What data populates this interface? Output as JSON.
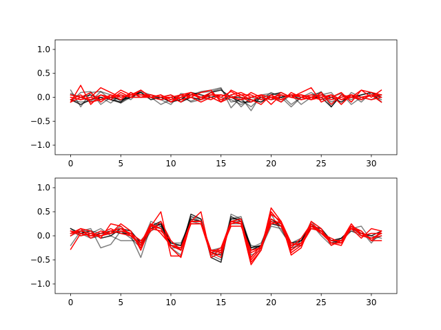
{
  "chart_data": [
    {
      "type": "line",
      "title": "",
      "xlabel": "",
      "ylabel": "",
      "xlim": [
        -1.55,
        32.55
      ],
      "ylim": [
        -1.2,
        1.2
      ],
      "xticks": [
        0,
        5,
        10,
        15,
        20,
        25,
        30
      ],
      "yticks": [
        -1.0,
        -0.5,
        0.0,
        0.5,
        1.0
      ],
      "ytick_labels": [
        "−1.0",
        "−0.5",
        "0.0",
        "0.5",
        "1.0"
      ],
      "grid": false,
      "legend": "none",
      "x": [
        0,
        1,
        2,
        3,
        4,
        5,
        6,
        7,
        8,
        9,
        10,
        11,
        12,
        13,
        14,
        15,
        16,
        17,
        18,
        19,
        20,
        21,
        22,
        23,
        24,
        25,
        26,
        27,
        28,
        29,
        30,
        31
      ],
      "series": [
        {
          "color": "#000000",
          "alpha": 0.5,
          "values": [
            0.15,
            -0.2,
            0.1,
            0.12,
            -0.05,
            -0.12,
            0.05,
            0.1,
            0.0,
            -0.05,
            -0.15,
            0.08,
            0.05,
            0.12,
            0.15,
            0.2,
            -0.22,
            0.0,
            -0.28,
            0.05,
            0.08,
            0.05,
            -0.15,
            0.0,
            0.05,
            0.1,
            -0.1,
            0.0,
            0.05,
            -0.1,
            0.1,
            0.05
          ]
        },
        {
          "color": "#000000",
          "alpha": 0.5,
          "values": [
            -0.05,
            -0.1,
            -0.08,
            0.12,
            0.05,
            -0.08,
            0.0,
            0.12,
            0.05,
            -0.05,
            0.0,
            -0.1,
            0.05,
            0.1,
            0.12,
            0.18,
            -0.1,
            -0.05,
            -0.2,
            0.0,
            0.05,
            -0.1,
            0.05,
            0.0,
            -0.05,
            0.05,
            0.1,
            -0.15,
            0.1,
            0.0,
            -0.05,
            0.05
          ]
        },
        {
          "color": "#000000",
          "alpha": 0.5,
          "values": [
            0.08,
            0.0,
            -0.1,
            0.0,
            -0.12,
            0.05,
            -0.05,
            0.15,
            0.0,
            0.0,
            -0.1,
            0.0,
            -0.08,
            0.0,
            0.05,
            0.0,
            -0.05,
            -0.15,
            -0.05,
            -0.1,
            0.0,
            0.0,
            -0.2,
            0.0,
            0.1,
            -0.05,
            0.0,
            0.08,
            -0.15,
            0.0,
            0.05,
            -0.05
          ]
        },
        {
          "color": "#000000",
          "alpha": 0.5,
          "values": [
            -0.1,
            0.1,
            0.12,
            -0.15,
            0.0,
            -0.12,
            0.0,
            0.0,
            0.0,
            -0.15,
            -0.05,
            0.05,
            -0.1,
            -0.05,
            0.0,
            -0.1,
            0.05,
            -0.2,
            0.0,
            -0.05,
            0.1,
            0.0,
            0.05,
            -0.15,
            0.0,
            0.12,
            -0.2,
            0.05,
            -0.05,
            0.05,
            0.1,
            -0.1
          ]
        },
        {
          "color": "#000000",
          "alpha": 0.85,
          "values": [
            -0.05,
            -0.15,
            -0.05,
            0.0,
            -0.05,
            -0.1,
            0.1,
            0.0,
            0.05,
            0.0,
            -0.1,
            -0.05,
            0.1,
            0.05,
            0.0,
            0.05,
            0.0,
            0.0,
            -0.05,
            -0.1,
            0.05,
            0.1,
            0.0,
            0.05,
            0.0,
            0.0,
            -0.2,
            0.05,
            0.0,
            0.05,
            0.1,
            0.0
          ]
        },
        {
          "color": "#000000",
          "alpha": 0.85,
          "values": [
            0.05,
            0.0,
            0.05,
            -0.05,
            0.0,
            -0.05,
            0.0,
            0.1,
            -0.05,
            0.0,
            0.05,
            -0.1,
            0.0,
            -0.05,
            0.1,
            0.15,
            0.0,
            -0.1,
            -0.1,
            0.0,
            -0.05,
            0.0,
            0.05,
            -0.05,
            0.0,
            0.05,
            0.0,
            -0.1,
            0.05,
            -0.05,
            0.05,
            -0.1
          ]
        },
        {
          "color": "#ff0000",
          "alpha": 1.0,
          "values": [
            -0.1,
            0.25,
            -0.15,
            0.05,
            -0.05,
            0.1,
            0.0,
            0.15,
            0.0,
            0.05,
            -0.05,
            0.0,
            0.05,
            0.0,
            0.1,
            -0.05,
            0.05,
            0.1,
            0.0,
            0.05,
            -0.15,
            0.05,
            0.0,
            0.1,
            0.2,
            -0.1,
            0.0,
            0.1,
            -0.1,
            0.15,
            0.1,
            0.05
          ]
        },
        {
          "color": "#ff0000",
          "alpha": 1.0,
          "values": [
            0.0,
            -0.05,
            0.0,
            0.2,
            0.1,
            0.0,
            0.05,
            0.15,
            0.0,
            0.05,
            -0.1,
            0.0,
            0.1,
            -0.05,
            0.05,
            0.0,
            0.12,
            0.0,
            -0.1,
            0.05,
            0.0,
            -0.1,
            0.1,
            0.0,
            -0.05,
            0.0,
            0.05,
            -0.05,
            0.0,
            0.15,
            0.0,
            0.15
          ]
        },
        {
          "color": "#ff0000",
          "alpha": 1.0,
          "values": [
            -0.05,
            0.05,
            -0.1,
            -0.05,
            0.0,
            0.15,
            0.05,
            0.05,
            0.05,
            0.0,
            0.05,
            -0.05,
            0.0,
            0.1,
            0.15,
            -0.1,
            0.15,
            0.05,
            -0.05,
            -0.15,
            0.05,
            -0.05,
            0.05,
            0.0,
            0.05,
            0.0,
            0.05,
            -0.15,
            0.05,
            -0.05,
            0.05,
            -0.1
          ]
        },
        {
          "color": "#ff0000",
          "alpha": 1.0,
          "values": [
            -0.1,
            0.0,
            0.1,
            -0.1,
            0.05,
            -0.05,
            0.1,
            0.0,
            0.0,
            0.05,
            -0.1,
            0.05,
            0.0,
            -0.1,
            0.0,
            -0.1,
            0.0,
            -0.05,
            0.1,
            0.0,
            -0.05,
            0.1,
            0.0,
            0.05,
            -0.05,
            0.1,
            -0.15,
            0.05,
            0.0,
            -0.05,
            0.05,
            0.05
          ]
        },
        {
          "color": "#ff0000",
          "alpha": 1.0,
          "values": [
            0.0,
            -0.05,
            0.0,
            -0.05,
            0.05,
            0.0,
            0.05,
            0.05,
            0.0,
            -0.05,
            0.0,
            0.05,
            0.1,
            0.0,
            0.05,
            0.05,
            0.0,
            0.05,
            0.05,
            -0.05,
            0.0,
            -0.05,
            0.05,
            0.05,
            0.0,
            -0.05,
            0.05,
            -0.05,
            0.05,
            0.0,
            -0.05,
            0.0
          ]
        },
        {
          "color": "#ff0000",
          "alpha": 1.0,
          "values": [
            0.05,
            0.0,
            -0.05,
            0.05,
            0.0,
            0.05,
            0.0,
            0.0,
            0.05,
            0.0,
            0.0,
            -0.1,
            0.05,
            0.0,
            -0.05,
            0.05,
            0.0,
            -0.05,
            0.0,
            0.05,
            0.0,
            0.05,
            0.0,
            -0.05,
            0.0,
            0.05,
            -0.05,
            0.0,
            0.05,
            0.0,
            0.05,
            0.0
          ]
        }
      ]
    },
    {
      "type": "line",
      "title": "",
      "xlabel": "",
      "ylabel": "",
      "xlim": [
        -1.55,
        32.55
      ],
      "ylim": [
        -1.2,
        1.2
      ],
      "xticks": [
        0,
        5,
        10,
        15,
        20,
        25,
        30
      ],
      "yticks": [
        -1.0,
        -0.5,
        0.0,
        0.5,
        1.0
      ],
      "ytick_labels": [
        "−1.0",
        "−0.5",
        "0.0",
        "0.5",
        "1.0"
      ],
      "grid": false,
      "legend": "none",
      "x": [
        0,
        1,
        2,
        3,
        4,
        5,
        6,
        7,
        8,
        9,
        10,
        11,
        12,
        13,
        14,
        15,
        16,
        17,
        18,
        19,
        20,
        21,
        22,
        23,
        24,
        25,
        26,
        27,
        28,
        29,
        30,
        31
      ],
      "series": [
        {
          "color": "#000000",
          "alpha": 0.5,
          "values": [
            -0.2,
            0.1,
            0.15,
            -0.25,
            -0.18,
            0.1,
            0.0,
            -0.45,
            0.2,
            0.25,
            -0.2,
            -0.2,
            0.4,
            0.35,
            -0.4,
            -0.5,
            0.45,
            0.35,
            -0.3,
            -0.2,
            0.45,
            0.1,
            -0.2,
            -0.15,
            0.3,
            0.05,
            -0.1,
            -0.15,
            0.2,
            0.1,
            -0.15,
            0.1
          ]
        },
        {
          "color": "#000000",
          "alpha": 0.5,
          "values": [
            0.1,
            0.05,
            -0.05,
            0.0,
            0.05,
            0.2,
            0.0,
            -0.2,
            0.3,
            0.2,
            -0.25,
            -0.25,
            0.4,
            0.3,
            -0.35,
            -0.3,
            0.35,
            0.4,
            -0.25,
            -0.15,
            0.3,
            0.2,
            -0.3,
            -0.1,
            0.25,
            0.0,
            -0.2,
            -0.05,
            0.15,
            0.2,
            -0.1,
            0.0
          ]
        },
        {
          "color": "#000000",
          "alpha": 0.5,
          "values": [
            0.15,
            0.0,
            0.05,
            0.15,
            0.0,
            -0.1,
            -0.1,
            -0.1,
            0.15,
            0.25,
            -0.25,
            -0.4,
            0.3,
            0.25,
            -0.3,
            -0.35,
            0.3,
            0.3,
            -0.4,
            -0.3,
            0.3,
            0.25,
            -0.15,
            -0.05,
            0.15,
            0.1,
            -0.15,
            -0.1,
            0.1,
            0.05,
            0.0,
            -0.05
          ]
        },
        {
          "color": "#000000",
          "alpha": 0.5,
          "values": [
            0.0,
            0.1,
            0.1,
            0.05,
            0.05,
            0.1,
            -0.05,
            -0.25,
            0.1,
            0.2,
            -0.15,
            -0.15,
            0.3,
            0.3,
            -0.3,
            -0.25,
            0.25,
            0.25,
            -0.2,
            -0.25,
            0.2,
            0.15,
            -0.25,
            -0.2,
            0.2,
            0.1,
            -0.15,
            -0.05,
            0.1,
            0.0,
            -0.05,
            0.05
          ]
        },
        {
          "color": "#000000",
          "alpha": 0.85,
          "values": [
            0.15,
            0.05,
            0.1,
            -0.05,
            0.0,
            0.15,
            0.1,
            -0.15,
            0.2,
            0.3,
            -0.2,
            -0.3,
            0.45,
            0.35,
            -0.45,
            -0.55,
            0.4,
            0.3,
            -0.3,
            -0.2,
            0.35,
            0.2,
            -0.2,
            -0.1,
            0.2,
            0.15,
            -0.1,
            -0.1,
            0.2,
            0.05,
            0.0,
            0.1
          ]
        },
        {
          "color": "#000000",
          "alpha": 0.85,
          "values": [
            0.05,
            0.1,
            0.0,
            0.05,
            0.1,
            0.05,
            0.05,
            -0.2,
            0.15,
            0.25,
            -0.15,
            -0.2,
            0.35,
            0.3,
            -0.35,
            -0.4,
            0.35,
            0.35,
            -0.25,
            -0.2,
            0.25,
            0.2,
            -0.15,
            -0.1,
            0.15,
            0.1,
            -0.1,
            -0.05,
            0.15,
            0.05,
            -0.05,
            0.05
          ]
        },
        {
          "color": "#ff0000",
          "alpha": 1.0,
          "values": [
            -0.28,
            0.05,
            0.0,
            0.1,
            0.05,
            0.25,
            0.1,
            -0.3,
            0.2,
            0.5,
            -0.42,
            -0.42,
            0.3,
            0.3,
            -0.35,
            -0.45,
            0.3,
            0.25,
            -0.6,
            -0.3,
            0.58,
            0.3,
            -0.4,
            -0.25,
            0.25,
            0.1,
            -0.15,
            -0.2,
            0.2,
            0.1,
            -0.1,
            -0.1
          ]
        },
        {
          "color": "#ff0000",
          "alpha": 1.0,
          "values": [
            0.05,
            0.15,
            0.1,
            -0.05,
            0.25,
            0.2,
            0.0,
            -0.2,
            0.25,
            0.15,
            -0.25,
            -0.45,
            0.3,
            0.5,
            -0.45,
            -0.35,
            0.3,
            0.35,
            -0.5,
            -0.25,
            0.5,
            0.25,
            -0.35,
            -0.2,
            0.3,
            0.15,
            -0.2,
            -0.1,
            0.25,
            0.0,
            -0.05,
            0.0
          ]
        },
        {
          "color": "#ff0000",
          "alpha": 1.0,
          "values": [
            0.1,
            0.0,
            0.05,
            0.0,
            0.1,
            0.15,
            0.05,
            -0.25,
            0.15,
            0.1,
            -0.1,
            -0.3,
            0.25,
            0.25,
            -0.4,
            -0.3,
            0.25,
            0.3,
            -0.55,
            -0.3,
            0.45,
            0.3,
            -0.3,
            -0.15,
            0.2,
            0.05,
            -0.15,
            -0.15,
            0.15,
            -0.05,
            0.15,
            0.1
          ]
        },
        {
          "color": "#ff0000",
          "alpha": 1.0,
          "values": [
            0.0,
            0.15,
            -0.05,
            0.05,
            0.15,
            0.05,
            0.0,
            -0.15,
            0.25,
            0.05,
            -0.2,
            -0.3,
            0.3,
            0.3,
            -0.35,
            -0.25,
            0.3,
            0.25,
            -0.45,
            -0.2,
            0.3,
            0.2,
            -0.25,
            -0.05,
            0.25,
            0.05,
            -0.05,
            -0.15,
            0.2,
            0.0,
            0.05,
            0.05
          ]
        },
        {
          "color": "#ff0000",
          "alpha": 1.0,
          "values": [
            0.1,
            0.05,
            0.0,
            0.0,
            0.05,
            0.1,
            0.05,
            -0.1,
            0.1,
            0.3,
            -0.1,
            -0.3,
            0.25,
            0.25,
            -0.3,
            -0.3,
            0.2,
            0.2,
            -0.3,
            -0.25,
            0.25,
            0.3,
            -0.15,
            -0.2,
            0.15,
            0.1,
            -0.1,
            -0.1,
            0.15,
            0.1,
            -0.1,
            0.1
          ]
        },
        {
          "color": "#ff0000",
          "alpha": 1.0,
          "values": [
            0.05,
            0.1,
            0.05,
            0.0,
            0.1,
            0.15,
            0.0,
            -0.15,
            0.2,
            0.15,
            -0.2,
            -0.25,
            0.3,
            0.3,
            -0.3,
            -0.35,
            0.3,
            0.25,
            -0.35,
            -0.25,
            0.35,
            0.25,
            -0.2,
            -0.15,
            0.2,
            0.1,
            -0.1,
            -0.1,
            0.2,
            0.05,
            -0.05,
            0.05
          ]
        }
      ]
    }
  ]
}
